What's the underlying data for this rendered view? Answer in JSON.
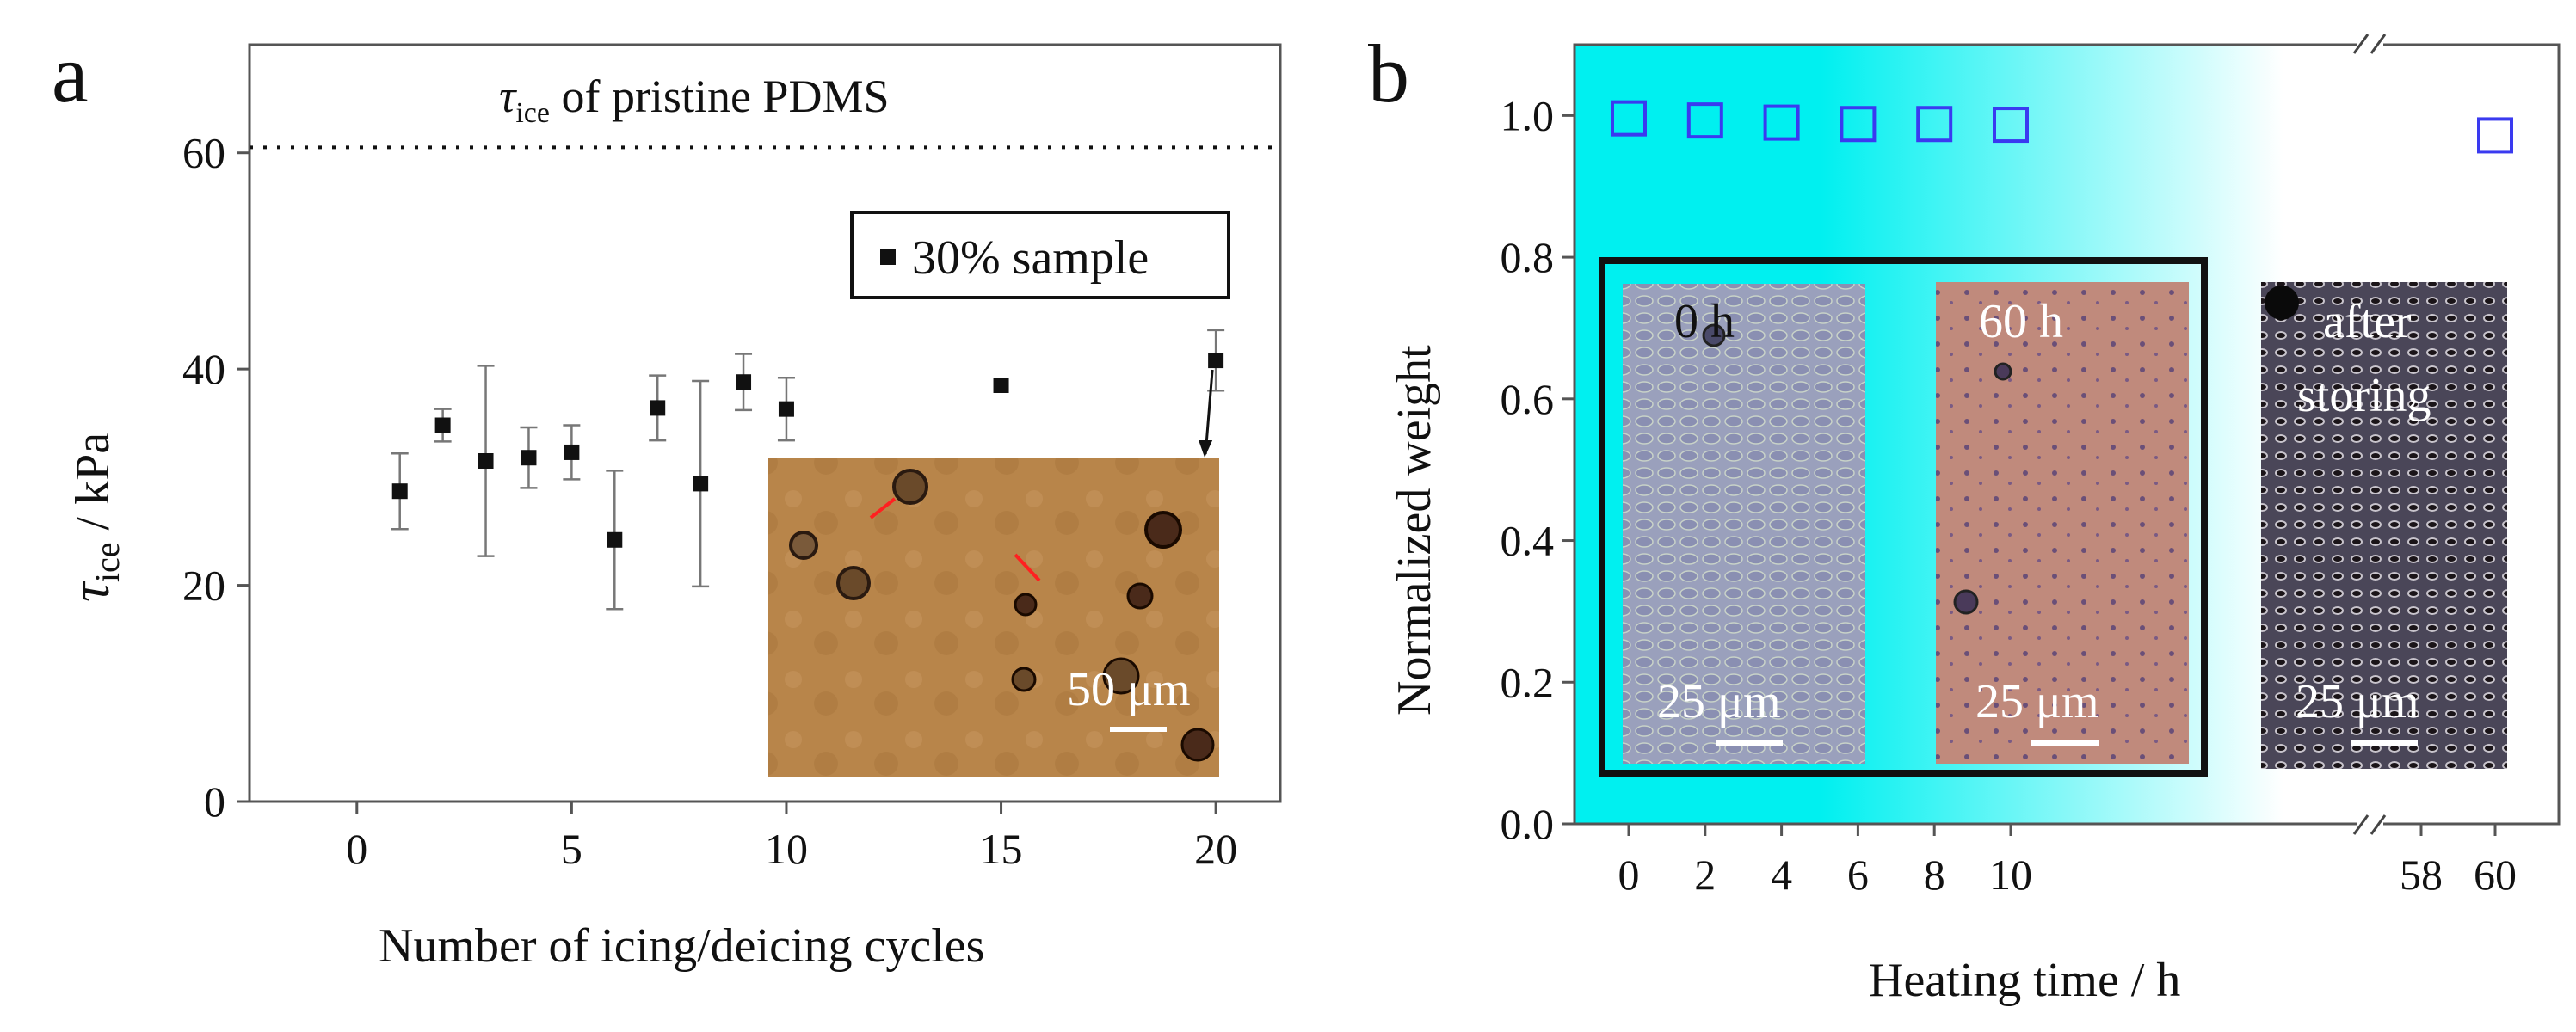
{
  "chart_data": [
    {
      "panel": "a",
      "type": "scatter",
      "title": "",
      "xlabel": "Number of icing/deicing cycles",
      "ylabel_symbol": "τ",
      "ylabel_sub": "ice",
      "ylabel_rest": " / kPa",
      "xlim": [
        -2.5,
        21.5
      ],
      "ylim": [
        0,
        70
      ],
      "xticks": [
        0,
        5,
        10,
        15,
        20
      ],
      "yticks": [
        0,
        20,
        40,
        60
      ],
      "legend": {
        "marker": "■",
        "label": "30% sample",
        "position": "top-right"
      },
      "reference_line": {
        "value": 60.5,
        "style": "dotted",
        "label_symbol": "τ",
        "label_sub": "ice",
        "label_rest": " of pristine PDMS"
      },
      "series": [
        {
          "name": "30% sample",
          "points": [
            {
              "x": 1,
              "y": 28.7,
              "err": 3.5
            },
            {
              "x": 2,
              "y": 34.8,
              "err": 1.5
            },
            {
              "x": 3,
              "y": 31.5,
              "err": 8.8
            },
            {
              "x": 4,
              "y": 31.8,
              "err": 2.8
            },
            {
              "x": 5,
              "y": 32.3,
              "err": 2.5
            },
            {
              "x": 6,
              "y": 24.2,
              "err": 6.4
            },
            {
              "x": 7,
              "y": 36.4,
              "err": 3.0
            },
            {
              "x": 8,
              "y": 29.4,
              "err": 9.5
            },
            {
              "x": 9,
              "y": 38.8,
              "err": 2.6
            },
            {
              "x": 10,
              "y": 36.3,
              "err": 2.9
            },
            {
              "x": 15,
              "y": 38.5,
              "err": 0
            },
            {
              "x": 20,
              "y": 40.8,
              "err": 2.8
            }
          ]
        }
      ],
      "inset": {
        "scale_bar_label": "50 μm",
        "points_to_x": 20
      }
    },
    {
      "panel": "b",
      "type": "scatter",
      "title": "",
      "xlabel": "Heating time / h",
      "ylabel": "Normalized weight",
      "ylim": [
        0.0,
        1.1
      ],
      "xticks": [
        "0",
        "2",
        "4",
        "6",
        "8",
        "10",
        "58",
        "60"
      ],
      "yticks": [
        "0.0",
        "0.2",
        "0.4",
        "0.6",
        "0.8",
        "1.0"
      ],
      "axis_break": "between 10 and 58",
      "background": {
        "type": "gradient",
        "from_color": "#00f0f0",
        "to_color": "#ffffff"
      },
      "series": [
        {
          "name": "Normalized weight",
          "marker": "open-square",
          "color": "#3a3af0",
          "points": [
            {
              "x": "0",
              "y": 0.996
            },
            {
              "x": "2",
              "y": 0.993
            },
            {
              "x": "4",
              "y": 0.99
            },
            {
              "x": "6",
              "y": 0.988
            },
            {
              "x": "8",
              "y": 0.988
            },
            {
              "x": "10",
              "y": 0.987
            },
            {
              "x": "60",
              "y": 0.972
            }
          ]
        }
      ],
      "insets": [
        {
          "label": "0 h",
          "scale_bar_label": "25 μm"
        },
        {
          "label": "60 h",
          "scale_bar_label": "25 μm"
        },
        {
          "label_line1": "after",
          "label_line2": "storing",
          "scale_bar_label": "25 μm"
        }
      ]
    }
  ]
}
